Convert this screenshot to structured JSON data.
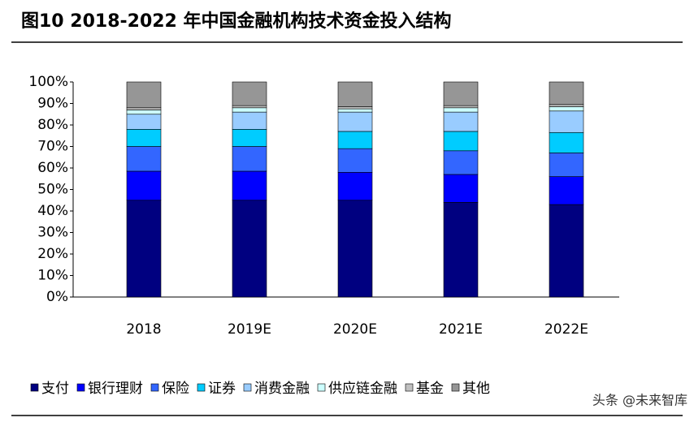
{
  "chart_data": {
    "type": "bar",
    "stacked": true,
    "title": "图10 2018-2022 年中国金融机构技术资金投入结构",
    "watermark": "头条 @未来智库",
    "categories": [
      "2018",
      "2019E",
      "2020E",
      "2021E",
      "2022E"
    ],
    "series": [
      {
        "name": "支付",
        "color": "#000080",
        "values": [
          45,
          45,
          45,
          44,
          43
        ]
      },
      {
        "name": "银行理财",
        "color": "#0000ff",
        "values": [
          13.5,
          13.5,
          13,
          13,
          13
        ]
      },
      {
        "name": "保险",
        "color": "#3366ff",
        "values": [
          11.5,
          11.5,
          11,
          11,
          11
        ]
      },
      {
        "name": "证券",
        "color": "#00ccff",
        "values": [
          8,
          8,
          8,
          9,
          9.5
        ]
      },
      {
        "name": "消费金融",
        "color": "#99ccff",
        "values": [
          7,
          8,
          9,
          9,
          10
        ]
      },
      {
        "name": "供应链金融",
        "color": "#ccffff",
        "values": [
          2,
          2,
          1.5,
          2,
          2
        ]
      },
      {
        "name": "基金",
        "color": "#c0c0c0",
        "values": [
          1,
          1,
          1,
          1,
          1
        ]
      },
      {
        "name": "其他",
        "color": "#969696",
        "values": [
          12,
          11,
          11.5,
          11,
          10.5
        ]
      }
    ],
    "ylim": [
      0,
      100
    ],
    "yticks": [
      {
        "value": 0,
        "label": "0%"
      },
      {
        "value": 10,
        "label": "10%"
      },
      {
        "value": 20,
        "label": "20%"
      },
      {
        "value": 30,
        "label": "30%"
      },
      {
        "value": 40,
        "label": "40%"
      },
      {
        "value": 50,
        "label": "50%"
      },
      {
        "value": 60,
        "label": "60%"
      },
      {
        "value": 70,
        "label": "70%"
      },
      {
        "value": 80,
        "label": "80%"
      },
      {
        "value": 90,
        "label": "90%"
      },
      {
        "value": 100,
        "label": "100%"
      }
    ],
    "legend": "bottom"
  }
}
